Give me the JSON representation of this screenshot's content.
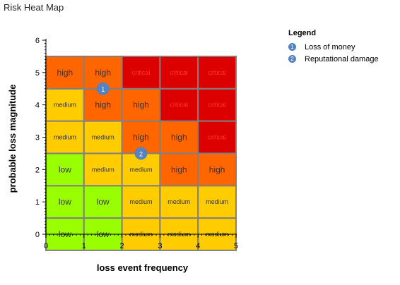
{
  "window": {
    "title": "Risk Heat Map"
  },
  "chart_data": {
    "type": "heatmap",
    "xlabel": "loss event frequency",
    "ylabel": "probable loss magnitude",
    "xlim": [
      0,
      5
    ],
    "ylim": [
      0,
      6
    ],
    "x_ticks": [
      0,
      1,
      2,
      3,
      4,
      5
    ],
    "y_ticks": [
      0,
      1,
      2,
      3,
      4,
      5,
      6
    ],
    "grid": true,
    "cells_range_y": [
      0,
      5
    ],
    "rows": [
      [
        "low",
        "low",
        "medium",
        "medium",
        "medium"
      ],
      [
        "low",
        "low",
        "medium",
        "medium",
        "medium"
      ],
      [
        "low",
        "medium",
        "medium",
        "high",
        "high"
      ],
      [
        "medium",
        "medium",
        "high",
        "high",
        "critical"
      ],
      [
        "medium",
        "high",
        "high",
        "critical",
        "critical"
      ],
      [
        "high",
        "high",
        "critical",
        "critical",
        "critical"
      ]
    ],
    "level_colors": {
      "low": "#99ff00",
      "medium": "#ffcc00",
      "high": "#ff6600",
      "critical": "#dd0000"
    },
    "points": [
      {
        "label": "1",
        "name": "Loss of money",
        "x": 1.5,
        "y": 4.5
      },
      {
        "label": "2",
        "name": "Reputational damage",
        "x": 2.5,
        "y": 2.5
      }
    ],
    "point_color": "#5582c0",
    "legend": {
      "title": "Legend",
      "position": "top-right"
    }
  }
}
